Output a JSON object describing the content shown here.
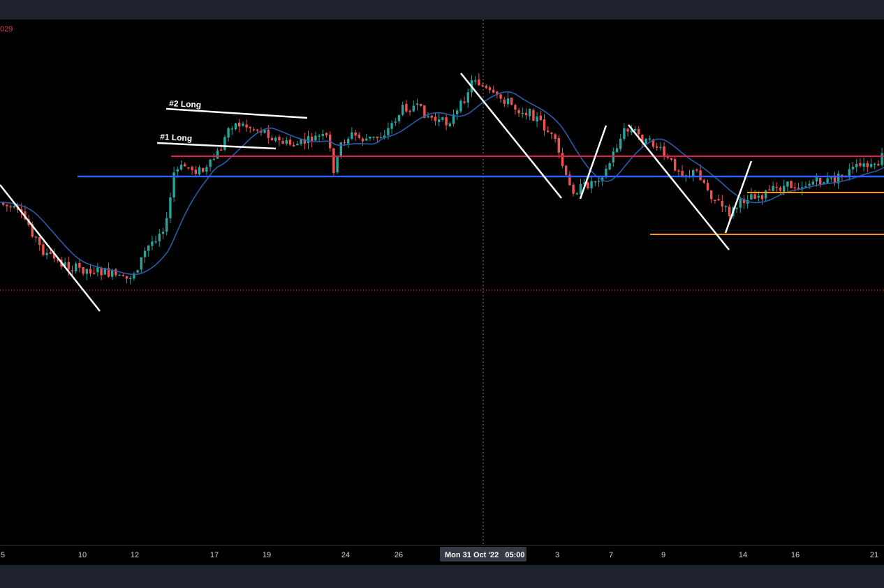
{
  "price_readout": "029",
  "crosshair_label": "Mon 31 Oct '22   05:00",
  "colors": {
    "up": "#26a69a",
    "down": "#ef5350",
    "ma": "#2a5caa",
    "red_level": "#e91e4a",
    "blue_level": "#2962ff",
    "orange_level": "#ff9800",
    "drawing": "#ffffff",
    "dotted_price": "#ef6c00"
  },
  "annotations": [
    {
      "name": "long-2-label",
      "text": "#2 Long"
    },
    {
      "name": "long-1-label",
      "text": "#1 Long"
    }
  ],
  "chart_data": {
    "type": "candlestick",
    "x_tick_labels": [
      "5",
      "10",
      "12",
      "17",
      "19",
      "24",
      "26",
      "3",
      "7",
      "9",
      "14",
      "16",
      "21"
    ],
    "crosshair_date": "Mon 31 Oct '22 05:00",
    "horizontal_levels": [
      {
        "name": "red-level",
        "color": "#e91e4a"
      },
      {
        "name": "blue-level",
        "color": "#2962ff"
      },
      {
        "name": "orange-level-upper",
        "color": "#ff9800"
      },
      {
        "name": "orange-level-lower",
        "color": "#ff9800"
      }
    ],
    "moving_average": true,
    "grid": false
  }
}
